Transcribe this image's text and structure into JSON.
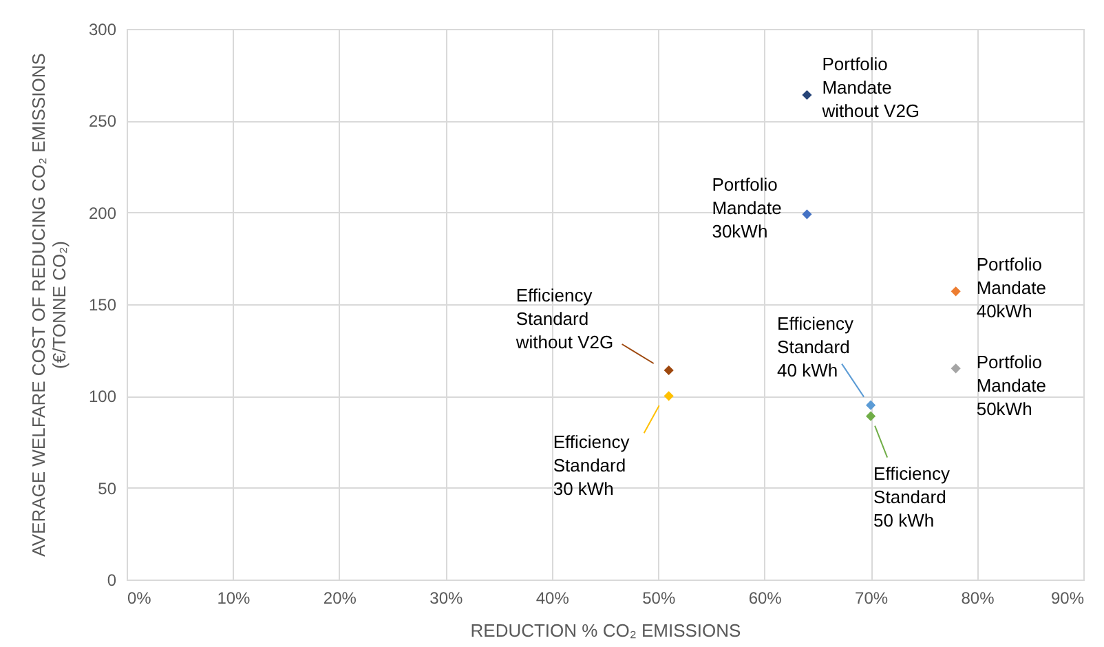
{
  "chart_data": {
    "type": "scatter",
    "xlabel": "REDUCTION % CO₂ EMISSIONS",
    "ylabel": "AVERAGE WELFARE COST OF REDUCING CO₂ EMISSIONS\n(€/TONNE CO₂)",
    "xlim": [
      0,
      90
    ],
    "xticks": [
      {
        "value": 0,
        "label": "0%"
      },
      {
        "value": 10,
        "label": "10%"
      },
      {
        "value": 20,
        "label": "20%"
      },
      {
        "value": 30,
        "label": "30%"
      },
      {
        "value": 40,
        "label": "40%"
      },
      {
        "value": 50,
        "label": "50%"
      },
      {
        "value": 60,
        "label": "60%"
      },
      {
        "value": 70,
        "label": "70%"
      },
      {
        "value": 80,
        "label": "80%"
      },
      {
        "value": 90,
        "label": "90%"
      }
    ],
    "ylim": [
      0,
      300
    ],
    "yticks": [
      0,
      50,
      100,
      150,
      200,
      250,
      300
    ],
    "grid": true,
    "marker": "diamond",
    "series": [
      {
        "name": "Portfolio\nMandate\nwithout V2G",
        "color": "#264478",
        "x": [
          64
        ],
        "values": [
          264
        ]
      },
      {
        "name": "Portfolio\nMandate\n30kWh",
        "color": "#4472c4",
        "x": [
          64
        ],
        "values": [
          199
        ]
      },
      {
        "name": "Portfolio\nMandate\n40kWh",
        "color": "#ed7d31",
        "x": [
          78
        ],
        "values": [
          157
        ]
      },
      {
        "name": "Portfolio\nMandate\n50kWh",
        "color": "#a5a5a5",
        "x": [
          78
        ],
        "values": [
          115
        ]
      },
      {
        "name": "Efficiency\nStandard\nwithout V2G",
        "color": "#9e480e",
        "x": [
          51
        ],
        "values": [
          114
        ]
      },
      {
        "name": "Efficiency\nStandard\n30 kWh",
        "color": "#ffc000",
        "x": [
          51
        ],
        "values": [
          100
        ]
      },
      {
        "name": "Efficiency\nStandard\n40 kWh",
        "color": "#5b9bd5",
        "x": [
          70
        ],
        "values": [
          95
        ]
      },
      {
        "name": "Efficiency\nStandard\n50 kWh",
        "color": "#70ad47",
        "x": [
          70
        ],
        "values": [
          89
        ]
      }
    ]
  }
}
